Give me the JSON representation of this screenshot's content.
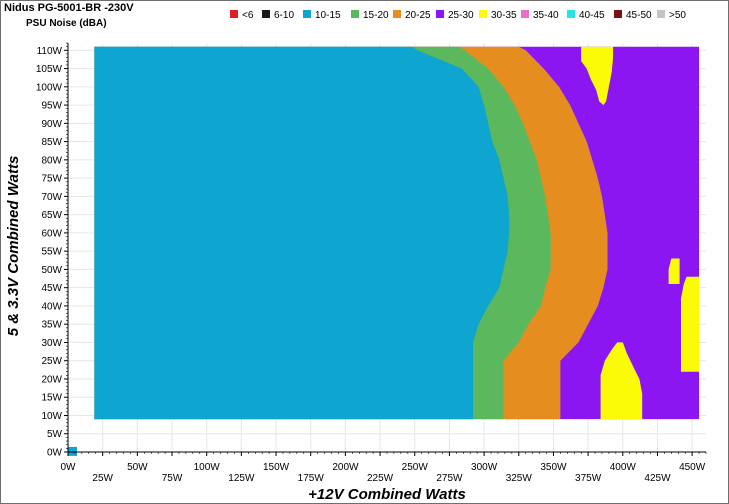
{
  "title": "Nidus PG-5001-BR -230V",
  "subtitle": "PSU Noise (dBA)",
  "chart_data": {
    "type": "heatmap",
    "xlabel": "+12V Combined Watts",
    "ylabel": "5 & 3.3V Combined Watts",
    "xlim": [
      0,
      460
    ],
    "ylim": [
      0,
      112
    ],
    "x_ticks": [
      "0W",
      "25W",
      "50W",
      "75W",
      "100W",
      "125W",
      "150W",
      "175W",
      "200W",
      "225W",
      "250W",
      "275W",
      "300W",
      "325W",
      "350W",
      "375W",
      "400W",
      "425W",
      "450W"
    ],
    "y_ticks": [
      "0W",
      "5W",
      "10W",
      "15W",
      "20W",
      "25W",
      "30W",
      "35W",
      "40W",
      "45W",
      "50W",
      "55W",
      "60W",
      "65W",
      "70W",
      "75W",
      "80W",
      "85W",
      "90W",
      "95W",
      "100W",
      "105W",
      "110W"
    ],
    "legend": [
      {
        "label": "<6",
        "color": "#e02020"
      },
      {
        "label": "6-10",
        "color": "#1a1a1a"
      },
      {
        "label": "10-15",
        "color": "#0ea5d1"
      },
      {
        "label": "15-20",
        "color": "#5cb85c"
      },
      {
        "label": "20-25",
        "color": "#e58e1f"
      },
      {
        "label": "25-30",
        "color": "#8b16f2"
      },
      {
        "label": "30-35",
        "color": "#fbfb08"
      },
      {
        "label": "35-40",
        "color": "#f06acb"
      },
      {
        "label": "40-45",
        "color": "#22e5e5"
      },
      {
        "label": "45-50",
        "color": "#7a1212"
      },
      {
        "label": ">50",
        "color": "#c4c4c4"
      }
    ],
    "regions": [
      {
        "band": "10-15",
        "y_range": [
          9,
          111
        ],
        "x_start": 19,
        "right_edge": [
          [
            9,
            292
          ],
          [
            30,
            292
          ],
          [
            35,
            296
          ],
          [
            40,
            303
          ],
          [
            45,
            311
          ],
          [
            50,
            314
          ],
          [
            55,
            317
          ],
          [
            60,
            318
          ],
          [
            65,
            318
          ],
          [
            70,
            317
          ],
          [
            75,
            314
          ],
          [
            80,
            311
          ],
          [
            85,
            306
          ],
          [
            90,
            303
          ],
          [
            95,
            300
          ],
          [
            100,
            296
          ],
          [
            105,
            284
          ],
          [
            110,
            252
          ],
          [
            111,
            248
          ]
        ]
      },
      {
        "band": "15-20",
        "right_edge": [
          [
            9,
            314
          ],
          [
            25,
            314
          ],
          [
            30,
            325
          ],
          [
            35,
            332
          ],
          [
            40,
            341
          ],
          [
            45,
            344
          ],
          [
            50,
            348
          ],
          [
            55,
            348
          ],
          [
            60,
            348
          ],
          [
            65,
            346
          ],
          [
            70,
            344
          ],
          [
            75,
            341
          ],
          [
            80,
            338
          ],
          [
            85,
            333
          ],
          [
            90,
            328
          ],
          [
            95,
            322
          ],
          [
            100,
            314
          ],
          [
            105,
            303
          ],
          [
            110,
            286
          ],
          [
            111,
            282
          ]
        ]
      },
      {
        "band": "20-25",
        "right_edge": [
          [
            9,
            355
          ],
          [
            25,
            355
          ],
          [
            30,
            368
          ],
          [
            35,
            375
          ],
          [
            40,
            382
          ],
          [
            45,
            386
          ],
          [
            50,
            389
          ],
          [
            55,
            389
          ],
          [
            60,
            389
          ],
          [
            65,
            387
          ],
          [
            70,
            385
          ],
          [
            75,
            382
          ],
          [
            80,
            378
          ],
          [
            85,
            374
          ],
          [
            90,
            368
          ],
          [
            95,
            362
          ],
          [
            100,
            354
          ],
          [
            105,
            343
          ],
          [
            110,
            330
          ],
          [
            111,
            325
          ]
        ]
      },
      {
        "band": "25-30",
        "right_edge": [
          [
            9,
            455
          ],
          [
            111,
            455
          ]
        ]
      },
      {
        "band": "30-35",
        "islands": "x 384-418W at 9-30W, x 442-455W at 22-48W, x 433-443W at 46-53W, x 370-393W at 98-111W"
      },
      {
        "band": "10-15",
        "point": [
          0,
          0
        ]
      }
    ]
  }
}
